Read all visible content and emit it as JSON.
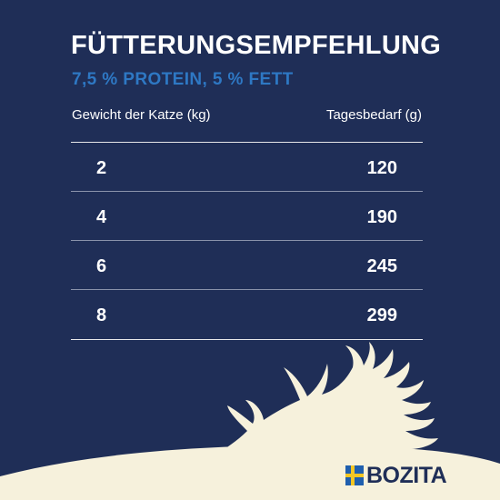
{
  "header": {
    "title": "FÜTTERUNGSEMPFEHLUNG",
    "subtitle": "7,5 % PROTEIN, 5 % FETT"
  },
  "table": {
    "columns": [
      "Gewicht der Katze (kg)",
      "Tagesbedarf (g)"
    ],
    "rows": [
      {
        "weight": "2",
        "need": "120"
      },
      {
        "weight": "4",
        "need": "190"
      },
      {
        "weight": "6",
        "need": "245"
      },
      {
        "weight": "8",
        "need": "299"
      }
    ]
  },
  "brand": {
    "name": "BOZITA",
    "flag_icon": "swedish-flag-icon",
    "decoration_icon": "moose-antler-icon"
  },
  "colors": {
    "background": "#1f2e57",
    "subtitle": "#2e78c4",
    "cream": "#f6f1dc",
    "flag_blue": "#1f5fae",
    "flag_yellow": "#f3c623"
  }
}
